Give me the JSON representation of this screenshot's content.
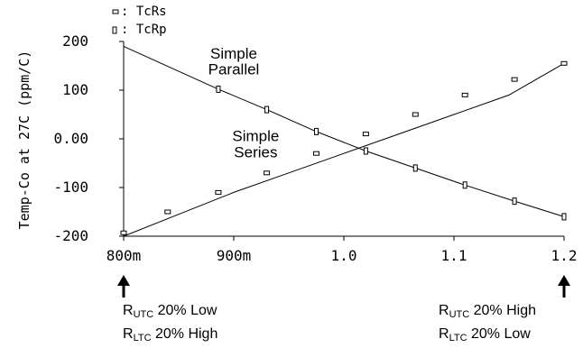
{
  "chart_data": {
    "type": "line",
    "title": "",
    "xlabel": "",
    "ylabel": "Temp-Co at 27C (ppm/C)",
    "xlim": [
      0.8,
      1.2
    ],
    "ylim": [
      -200,
      200
    ],
    "xticks": [
      {
        "value": 0.8,
        "label": "800m"
      },
      {
        "value": 0.9,
        "label": "900m"
      },
      {
        "value": 1.0,
        "label": "1.0"
      },
      {
        "value": 1.1,
        "label": "1.1"
      },
      {
        "value": 1.2,
        "label": "1.2"
      }
    ],
    "yticks": [
      {
        "value": 200,
        "label": "200"
      },
      {
        "value": 100,
        "label": "100"
      },
      {
        "value": 0,
        "label": "0.00"
      },
      {
        "value": -100,
        "label": "-100"
      },
      {
        "value": -200,
        "label": "-200"
      }
    ],
    "legend_position": "top-left",
    "series": [
      {
        "name": "TcRs",
        "marker": "=",
        "x": [
          0.8,
          0.85,
          0.9,
          0.95,
          1.0,
          1.05,
          1.1,
          1.15,
          1.2
        ],
        "y": [
          -200,
          -155,
          -110,
          -70,
          -30,
          10,
          50,
          90,
          155
        ],
        "markers_x": [
          0.8,
          0.84,
          0.886,
          0.93,
          0.975,
          1.02,
          1.065,
          1.11,
          1.155,
          1.2
        ],
        "markers_y": [
          -193,
          -150,
          -110,
          -70,
          -30,
          10,
          50,
          90,
          122,
          155
        ]
      },
      {
        "name": "TcRp",
        "marker": "▯",
        "x": [
          0.8,
          0.886,
          0.93,
          0.975,
          1.02,
          1.065,
          1.11,
          1.155,
          1.2
        ],
        "y": [
          190,
          102,
          60,
          15,
          -25,
          -60,
          -95,
          -128,
          -160
        ],
        "markers_x": [
          0.886,
          0.93,
          0.975,
          1.02,
          1.065,
          1.11,
          1.155,
          1.2
        ],
        "markers_y": [
          102,
          60,
          15,
          -25,
          -60,
          -95,
          -128,
          -160
        ]
      }
    ],
    "annotations": [
      {
        "text": "Simple",
        "x": 0.9,
        "y": 165
      },
      {
        "text": "Parallel",
        "x": 0.9,
        "y": 132
      },
      {
        "text": "Simple",
        "x": 0.92,
        "y": -5
      },
      {
        "text": "Series",
        "x": 0.92,
        "y": -38
      }
    ]
  },
  "notes": {
    "left": {
      "line1": {
        "r": "R",
        "sub": "UTC",
        "text": " 20% Low"
      },
      "line2": {
        "r": "R",
        "sub": "LTC",
        "text": " 20% High"
      }
    },
    "right": {
      "line1": {
        "r": "R",
        "sub": "UTC",
        "text": " 20% High"
      },
      "line2": {
        "r": "R",
        "sub": "LTC",
        "text": " 20% Low"
      }
    }
  }
}
